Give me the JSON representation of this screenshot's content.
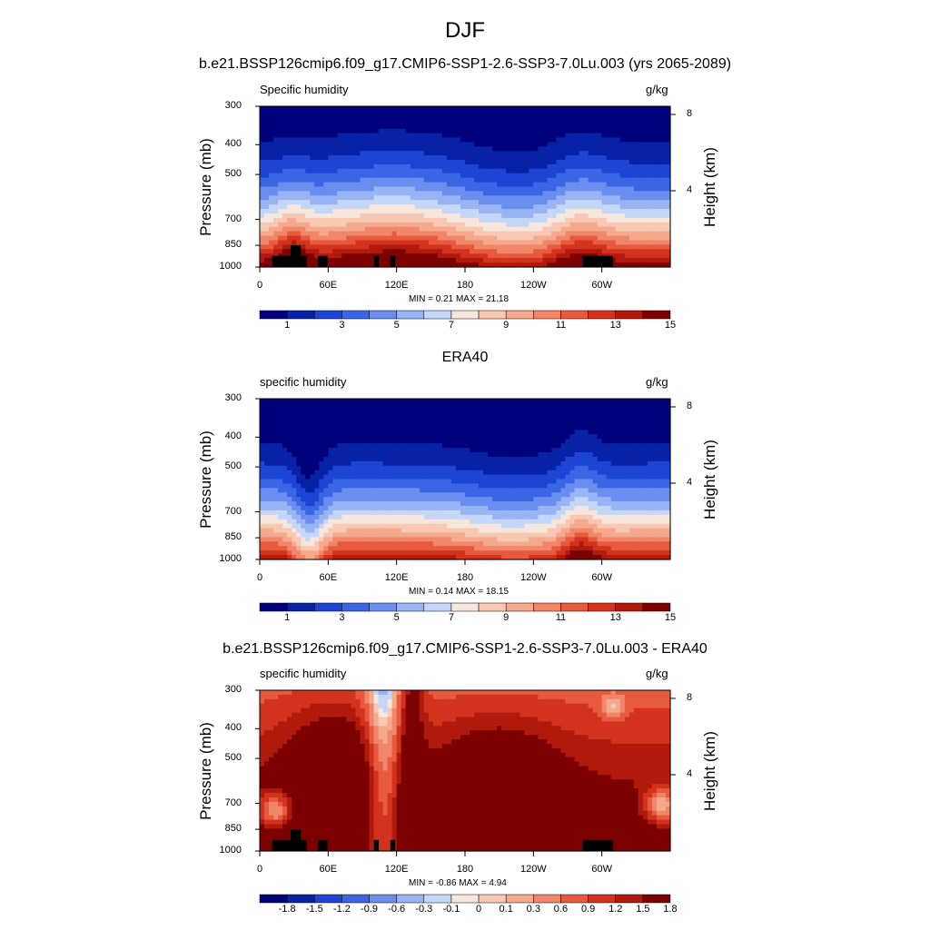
{
  "main_title": "DJF",
  "chart_data": [
    {
      "type": "heatmap",
      "title": "b.e21.BSSP126cmip6.f09_g17.CMIP6-SSP1-2.6-SSP3-7.0Lu.003 (yrs 2065-2089)",
      "left_label": "Specific humidity",
      "right_label": "g/kg",
      "ylabel": "Pressure (mb)",
      "y2label": "Height (km)",
      "x_ticks": [
        "0",
        "60E",
        "120E",
        "180",
        "120W",
        "60W"
      ],
      "y_ticks": [
        "300",
        "400",
        "500",
        "700",
        "850",
        "1000"
      ],
      "y2_ticks": [
        "8",
        "4"
      ],
      "stats": "MIN =   0.21  MAX =  21.18",
      "colorbar_labels": [
        "1",
        "3",
        "5",
        "7",
        "9",
        "11",
        "13",
        "15"
      ],
      "min": 0.21,
      "max": 21.18,
      "ylim": [
        1000,
        300
      ]
    },
    {
      "type": "heatmap",
      "title": "ERA40",
      "left_label": "specific humidity",
      "right_label": "g/kg",
      "ylabel": "Pressure (mb)",
      "y2label": "Height (km)",
      "x_ticks": [
        "0",
        "60E",
        "120E",
        "180",
        "120W",
        "60W"
      ],
      "y_ticks": [
        "300",
        "400",
        "500",
        "700",
        "850",
        "1000"
      ],
      "y2_ticks": [
        "8",
        "4"
      ],
      "stats": "MIN =   0.14  MAX =  18.15",
      "colorbar_labels": [
        "1",
        "3",
        "5",
        "7",
        "9",
        "11",
        "13",
        "15"
      ],
      "min": 0.14,
      "max": 18.15,
      "ylim": [
        1000,
        300
      ]
    },
    {
      "type": "heatmap",
      "title": "b.e21.BSSP126cmip6.f09_g17.CMIP6-SSP1-2.6-SSP3-7.0Lu.003 - ERA40",
      "left_label": "specific humidity",
      "right_label": "g/kg",
      "ylabel": "Pressure (mb)",
      "y2label": "Height (km)",
      "x_ticks": [
        "0",
        "60E",
        "120E",
        "180",
        "120W",
        "60W"
      ],
      "y_ticks": [
        "300",
        "400",
        "500",
        "700",
        "850",
        "1000"
      ],
      "y2_ticks": [
        "8",
        "4"
      ],
      "stats": "MIN =  -0.86  MAX =   4.94",
      "colorbar_labels": [
        "-1.8",
        "-1.5",
        "-1.2",
        "-0.9",
        "-0.6",
        "-0.3",
        "-0.1",
        "0",
        "0.1",
        "0.3",
        "0.6",
        "0.9",
        "1.2",
        "1.5",
        "1.8"
      ],
      "min": -0.86,
      "max": 4.94,
      "ylim": [
        1000,
        300
      ]
    }
  ],
  "colors": [
    "#00007a",
    "#0722a6",
    "#1d44d2",
    "#3a66e6",
    "#6a8ef0",
    "#98b4f4",
    "#c5d7f8",
    "#f6e6dc",
    "#f8c8b2",
    "#f5a98d",
    "#f2866a",
    "#e85a3e",
    "#d3321e",
    "#b01a0c",
    "#7c0000"
  ]
}
